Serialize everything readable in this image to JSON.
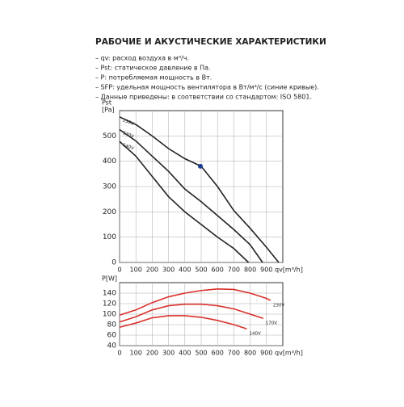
{
  "header": {
    "title": "РАБОЧИЕ И АКУСТИЧЕСКИЕ ХАРАКТЕРИСТИКИ"
  },
  "notes": [
    "– qv: расход воздуха в м³/ч.",
    "– Pst: статическое давление в Па.",
    "– P: потребляемая мощность в Вт.",
    "– SFP: удельная мощность вентилятора в Вт/м³/с (синие кривые).",
    "– Данные приведены: в соответствии со стандартом: ISO 5801."
  ],
  "chart_data": [
    {
      "type": "line",
      "ylabel": "Pst",
      "yunit": "[Pa]",
      "xlabel": "qv[m³/h]",
      "xlim": [
        0,
        1000
      ],
      "ylim": [
        0,
        600
      ],
      "xticks": [
        0,
        100,
        200,
        300,
        400,
        500,
        600,
        700,
        800,
        900
      ],
      "yticks": [
        0,
        100,
        200,
        300,
        400,
        500
      ],
      "grid": true,
      "point": {
        "x": 495,
        "y": 380,
        "color": "#1a3f8f"
      },
      "series": [
        {
          "name": "230V",
          "color": "#222",
          "x": [
            0,
            100,
            200,
            300,
            400,
            500,
            600,
            700,
            800,
            900,
            975
          ],
          "values": [
            575,
            545,
            500,
            450,
            410,
            380,
            300,
            205,
            135,
            60,
            0
          ]
        },
        {
          "name": "170V",
          "color": "#222",
          "x": [
            0,
            100,
            200,
            300,
            400,
            500,
            600,
            700,
            800,
            876
          ],
          "values": [
            525,
            480,
            420,
            360,
            290,
            240,
            185,
            130,
            70,
            0
          ]
        },
        {
          "name": "140V",
          "color": "#222",
          "x": [
            0,
            100,
            200,
            300,
            400,
            500,
            600,
            700,
            790
          ],
          "values": [
            478,
            420,
            340,
            260,
            200,
            150,
            100,
            55,
            0
          ]
        }
      ]
    },
    {
      "type": "line",
      "ylabel": "P[W]",
      "xlabel": "qv[m³/h]",
      "xlim": [
        0,
        1000
      ],
      "ylim": [
        40,
        160
      ],
      "xticks": [
        0,
        100,
        200,
        300,
        400,
        500,
        600,
        700,
        800,
        900
      ],
      "yticks": [
        40,
        60,
        80,
        100,
        120,
        140
      ],
      "grid": true,
      "series": [
        {
          "name": "230V",
          "color": "#d9312b",
          "x": [
            0,
            100,
            200,
            300,
            400,
            500,
            600,
            700,
            800,
            900,
            925
          ],
          "values": [
            98,
            108,
            122,
            133,
            140,
            145,
            148,
            147,
            140,
            130,
            126
          ]
        },
        {
          "name": "170V",
          "color": "#d9312b",
          "x": [
            0,
            100,
            200,
            300,
            400,
            500,
            600,
            700,
            800,
            880
          ],
          "values": [
            85,
            95,
            108,
            116,
            119,
            119,
            116,
            110,
            100,
            92
          ]
        },
        {
          "name": "140V",
          "color": "#d9312b",
          "x": [
            0,
            100,
            200,
            300,
            400,
            500,
            600,
            700,
            780
          ],
          "values": [
            75,
            83,
            93,
            97,
            97,
            94,
            88,
            80,
            72
          ]
        }
      ]
    }
  ]
}
